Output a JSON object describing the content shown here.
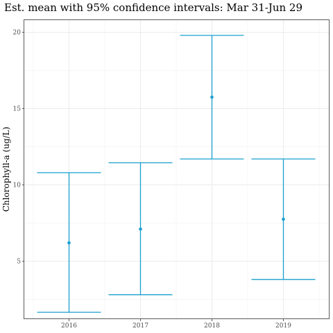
{
  "chart_data": {
    "type": "errorbar",
    "title": "Est. mean with 95% confidence intervals: Mar 31-Jun 29",
    "xlabel": "",
    "ylabel": "Chlorophyll-a (ug/L)",
    "categories": [
      "2016",
      "2017",
      "2018",
      "2019"
    ],
    "mean": [
      6.2,
      7.1,
      15.75,
      7.75
    ],
    "lower": [
      1.65,
      2.8,
      11.7,
      3.8
    ],
    "upper": [
      10.8,
      11.45,
      19.8,
      11.7
    ],
    "ylim": [
      1.2,
      20.8
    ],
    "yticks": [
      5,
      10,
      15,
      20
    ],
    "grid": true,
    "legend": "none",
    "color": "#1a9fcf"
  }
}
